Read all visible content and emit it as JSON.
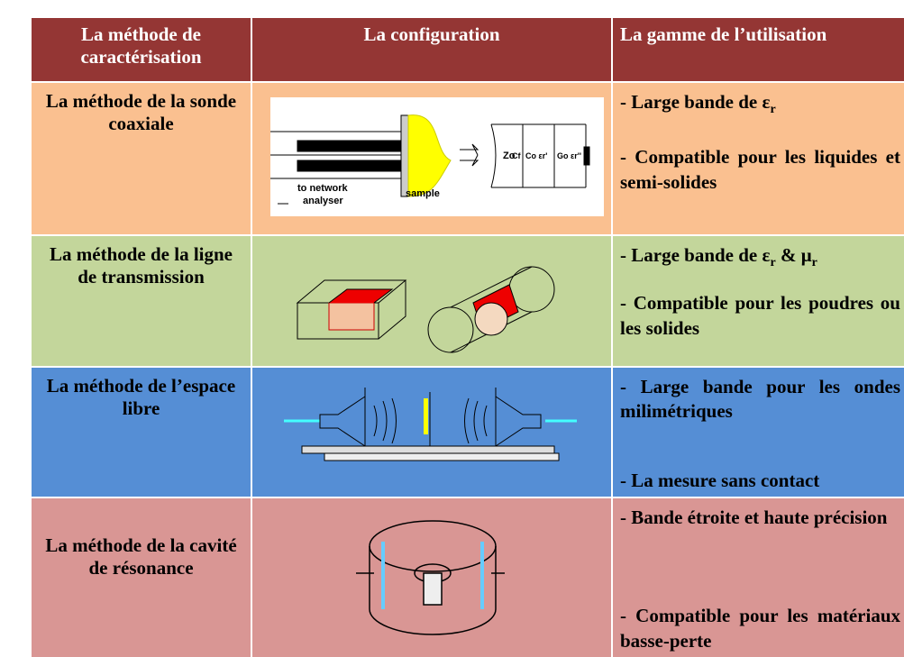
{
  "table": {
    "header": [
      "La méthode de caractérisation",
      "La configuration",
      "La gamme de l’utilisation"
    ],
    "rows": [
      {
        "method": "La méthode de la sonde coaxiale",
        "figure_labels": [
          "to network",
          "analyser",
          "sample",
          "Zo",
          "Cf",
          "Co εr'",
          "Go εr''"
        ],
        "usage": [
          [
            {
              "text": "- Large bande de ε"
            },
            {
              "sub": "r"
            }
          ],
          [
            {
              "text": "- Compatible pour les liquides et semi-solides"
            }
          ]
        ]
      },
      {
        "method": "La méthode de la ligne de transmission",
        "usage": [
          [
            {
              "text": "- Large bande de ε"
            },
            {
              "sub": "r"
            },
            {
              "text": " & μ"
            },
            {
              "sub": "r"
            }
          ],
          [
            {
              "text": "- Compatible pour les poudres ou les solides"
            }
          ]
        ]
      },
      {
        "method": "La méthode de l’espace libre",
        "usage": [
          [
            {
              "text": "- Large bande pour les ondes milimétriques"
            }
          ],
          [
            {
              "text": "- La mesure sans contact"
            }
          ]
        ]
      },
      {
        "method": "La méthode de la cavité de résonance",
        "usage": [
          [
            {
              "text": "- Bande étroite et haute précision"
            }
          ],
          [
            {
              "text": "- Compatible pour les matériaux basse-perte"
            }
          ]
        ]
      }
    ]
  }
}
